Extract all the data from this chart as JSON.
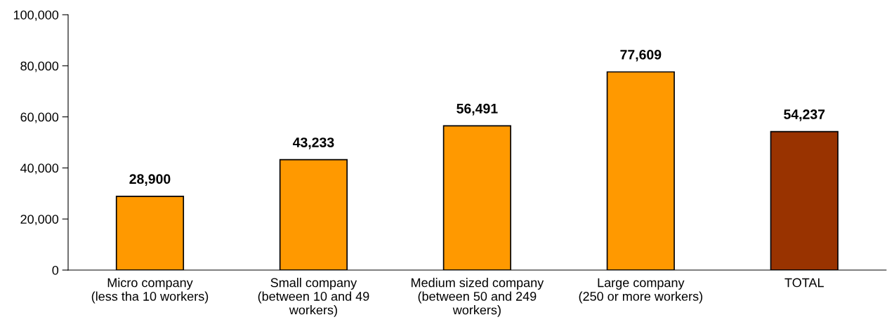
{
  "chart_data": {
    "type": "bar",
    "categories": [
      "Micro company\n(less tha 10 workers)",
      "Small company\n(between 10 and 49\nworkers)",
      "Medium sized company\n(between 50 and 249\nworkers)",
      "Large company\n(250 or more workers)",
      "TOTAL"
    ],
    "values": [
      28900,
      43233,
      56491,
      77609,
      54237
    ],
    "colors": [
      "#ff9900",
      "#ff9900",
      "#ff9900",
      "#ff9900",
      "#993300"
    ],
    "ylim": [
      0,
      100000
    ],
    "yticks": [
      {
        "value": 0,
        "label": "0"
      },
      {
        "value": 20000,
        "label": "20,000"
      },
      {
        "value": 40000,
        "label": "40,000"
      },
      {
        "value": 60000,
        "label": "60,000"
      },
      {
        "value": 80000,
        "label": "80,000"
      },
      {
        "value": 100000,
        "label": "100,000"
      }
    ],
    "value_labels": [
      "28,900",
      "43,233",
      "56,491",
      "77,609",
      "54,237"
    ],
    "grid": false,
    "legend": false
  }
}
